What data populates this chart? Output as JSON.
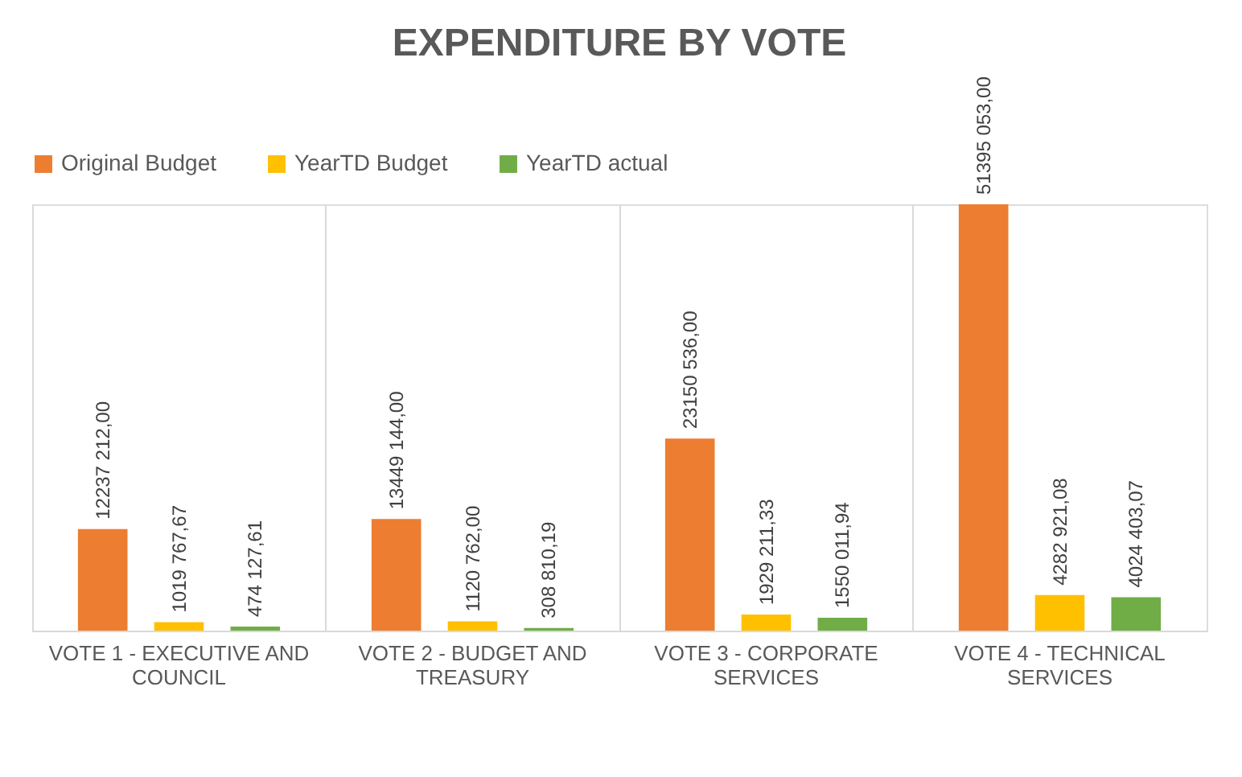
{
  "chart_data": {
    "type": "bar",
    "title": "EXPENDITURE  BY VOTE",
    "categories": [
      "VOTE 1 - EXECUTIVE AND COUNCIL",
      "VOTE 2 - BUDGET AND TREASURY",
      "VOTE 3 - CORPORATE SERVICES",
      "VOTE 4 - TECHNICAL SERVICES"
    ],
    "series": [
      {
        "name": "Original Budget",
        "color": "#ed7d31",
        "values": [
          12237212,
          13449144,
          23150536,
          51395053
        ],
        "value_labels": [
          "12237 212,00",
          "13449 144,00",
          "23150 536,00",
          "51395 053,00"
        ]
      },
      {
        "name": "YearTD Budget",
        "color": "#ffc000",
        "values": [
          1019767.67,
          1120762,
          1929211.33,
          4282921.08
        ],
        "value_labels": [
          "1019 767,67",
          "1120 762,00",
          "1929 211,33",
          "4282 921,08"
        ]
      },
      {
        "name": "YearTD actual",
        "color": "#70ad47",
        "values": [
          474127.61,
          308810.19,
          1550011.94,
          4024403.07
        ],
        "value_labels": [
          "474 127,61",
          "308 810,19",
          "1550 011,94",
          "4024 403,07"
        ]
      }
    ],
    "grid": "x",
    "legend": "top",
    "tick_labels": "x"
  }
}
